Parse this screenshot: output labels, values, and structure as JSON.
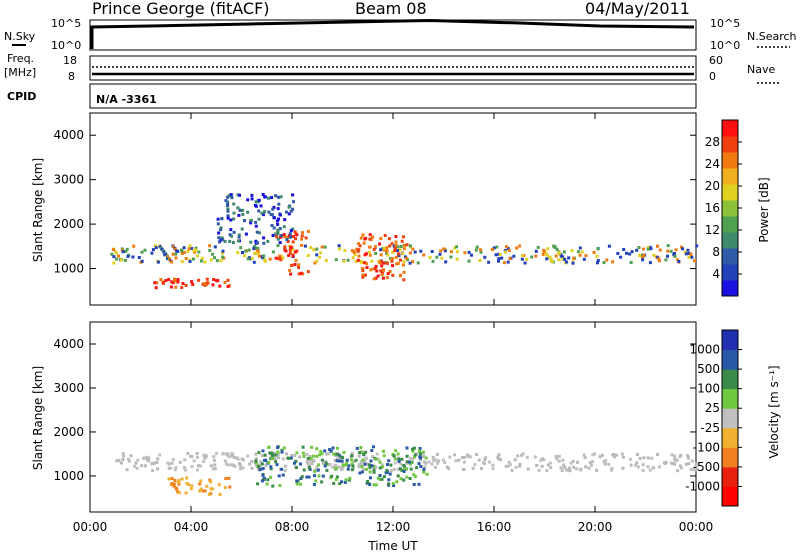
{
  "header": {
    "title": "Prince George (fitACF)",
    "beam": "Beam 08",
    "date": "04/May/2011"
  },
  "status_panels": {
    "nsky_label": "N.Sky",
    "nsky_ticks": [
      "10^5",
      "10^0"
    ],
    "nsearch_label": "N.Search",
    "nsearch_ticks": [
      "10^5",
      "10^0"
    ],
    "freq_label": "Freq.",
    "freq_unit": "[MHz]",
    "freq_ticks": [
      "18",
      "8"
    ],
    "nave_label": "Nave",
    "nave_ticks": [
      "60",
      "0"
    ],
    "cpid_label": "CPID",
    "cpid_value": "N/A -3361"
  },
  "chart_data": [
    {
      "type": "heatmap",
      "name_id": "power",
      "ylabel": "Slant Range [km]",
      "xlabel": "",
      "x_ticks": [
        "00:00",
        "04:00",
        "08:00",
        "12:00",
        "16:00",
        "20:00",
        "00:00"
      ],
      "y_ticks": [
        "1000",
        "2000",
        "3000",
        "4000"
      ],
      "xlim_hours": [
        0,
        24
      ],
      "ylim_km": [
        180,
        4500
      ],
      "colorbar": {
        "label": "Power [dB]",
        "ticks": [
          "4",
          "8",
          "12",
          "16",
          "20",
          "24",
          "28"
        ],
        "colors": [
          "#1a10e0",
          "#2240b8",
          "#2f5aa6",
          "#3e8a6a",
          "#4fa050",
          "#8cc23a",
          "#e0d020",
          "#f0b020",
          "#f07a10",
          "#f04010",
          "#ff1010"
        ]
      },
      "regions": [
        {
          "t0": 0.8,
          "t1": 24,
          "r0": 1150,
          "r1": 1550,
          "level": "mid"
        },
        {
          "t0": 2.5,
          "t1": 5.5,
          "r0": 600,
          "r1": 800,
          "level": "strong"
        },
        {
          "t0": 7.3,
          "t1": 8.6,
          "r0": 900,
          "r1": 1900,
          "level": "strong"
        },
        {
          "t0": 10.5,
          "t1": 12.5,
          "r0": 750,
          "r1": 1800,
          "level": "strong"
        },
        {
          "t0": 5.0,
          "t1": 8.0,
          "r0": 1600,
          "r1": 2700,
          "level": "weak"
        }
      ]
    },
    {
      "type": "heatmap",
      "name_id": "velocity",
      "ylabel": "Slant Range [km]",
      "xlabel": "Time UT",
      "x_ticks": [
        "00:00",
        "04:00",
        "08:00",
        "12:00",
        "16:00",
        "20:00",
        "00:00"
      ],
      "y_ticks": [
        "1000",
        "2000",
        "3000",
        "4000"
      ],
      "xlim_hours": [
        0,
        24
      ],
      "ylim_km": [
        180,
        4500
      ],
      "colorbar": {
        "label": "Velocity [m s⁻¹]",
        "ticks": [
          "1000",
          "500",
          "100",
          "25",
          "-25",
          "-100",
          "-500",
          "-1000"
        ],
        "colors": [
          "#2030b0",
          "#2858a8",
          "#3a8a4a",
          "#70c840",
          "#c0c0c0",
          "#f0b030",
          "#f08020",
          "#e82010",
          "#ff0000"
        ]
      },
      "regions": [
        {
          "t0": 0.8,
          "t1": 24,
          "r0": 1150,
          "r1": 1550,
          "level": "ground"
        },
        {
          "t0": 3.0,
          "t1": 5.5,
          "r0": 600,
          "r1": 1000,
          "level": "neg"
        },
        {
          "t0": 6.5,
          "t1": 13.3,
          "r0": 800,
          "r1": 1700,
          "level": "pos"
        }
      ]
    }
  ]
}
